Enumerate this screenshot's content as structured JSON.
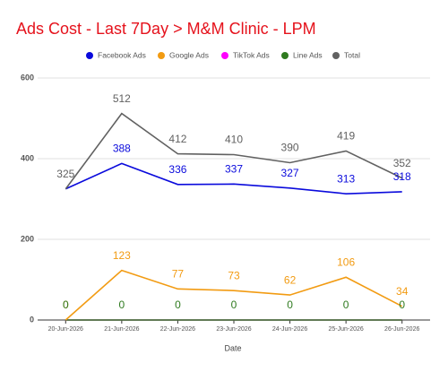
{
  "chart_data": {
    "type": "line",
    "title": "Ads Cost - Last 7Day > M&M Clinic - LPM",
    "x_label": "Date",
    "categories": [
      "20-Jun-2026",
      "21-Jun-2026",
      "22-Jun-2026",
      "23-Jun-2026",
      "24-Jun-2026",
      "25-Jun-2026",
      "26-Jun-2026"
    ],
    "series": [
      {
        "name": "Facebook Ads",
        "color": "#0a0adc",
        "values": [
          325,
          388,
          336,
          337,
          327,
          313,
          318
        ],
        "data_labels": true,
        "value_labels": [
          null,
          "388",
          "336",
          "337",
          "327",
          "313",
          "318"
        ]
      },
      {
        "name": "Google Ads",
        "color": "#f29b12",
        "values": [
          0,
          123,
          77,
          73,
          62,
          106,
          34
        ],
        "data_labels": true
      },
      {
        "name": "TikTok Ads",
        "color": "#ff00ff",
        "values": [
          0,
          0,
          0,
          0,
          0,
          0,
          0
        ],
        "data_labels": false
      },
      {
        "name": "Line Ads",
        "color": "#2f7a1f",
        "values": [
          0,
          0,
          0,
          0,
          0,
          0,
          0
        ],
        "data_labels": true
      },
      {
        "name": "Total",
        "color": "#616161",
        "values": [
          325,
          512,
          412,
          410,
          390,
          419,
          352
        ],
        "data_labels": true
      }
    ],
    "ylim": [
      0,
      600
    ],
    "yticks": [
      0,
      200,
      400,
      600
    ],
    "grid": true,
    "legend": "top"
  }
}
